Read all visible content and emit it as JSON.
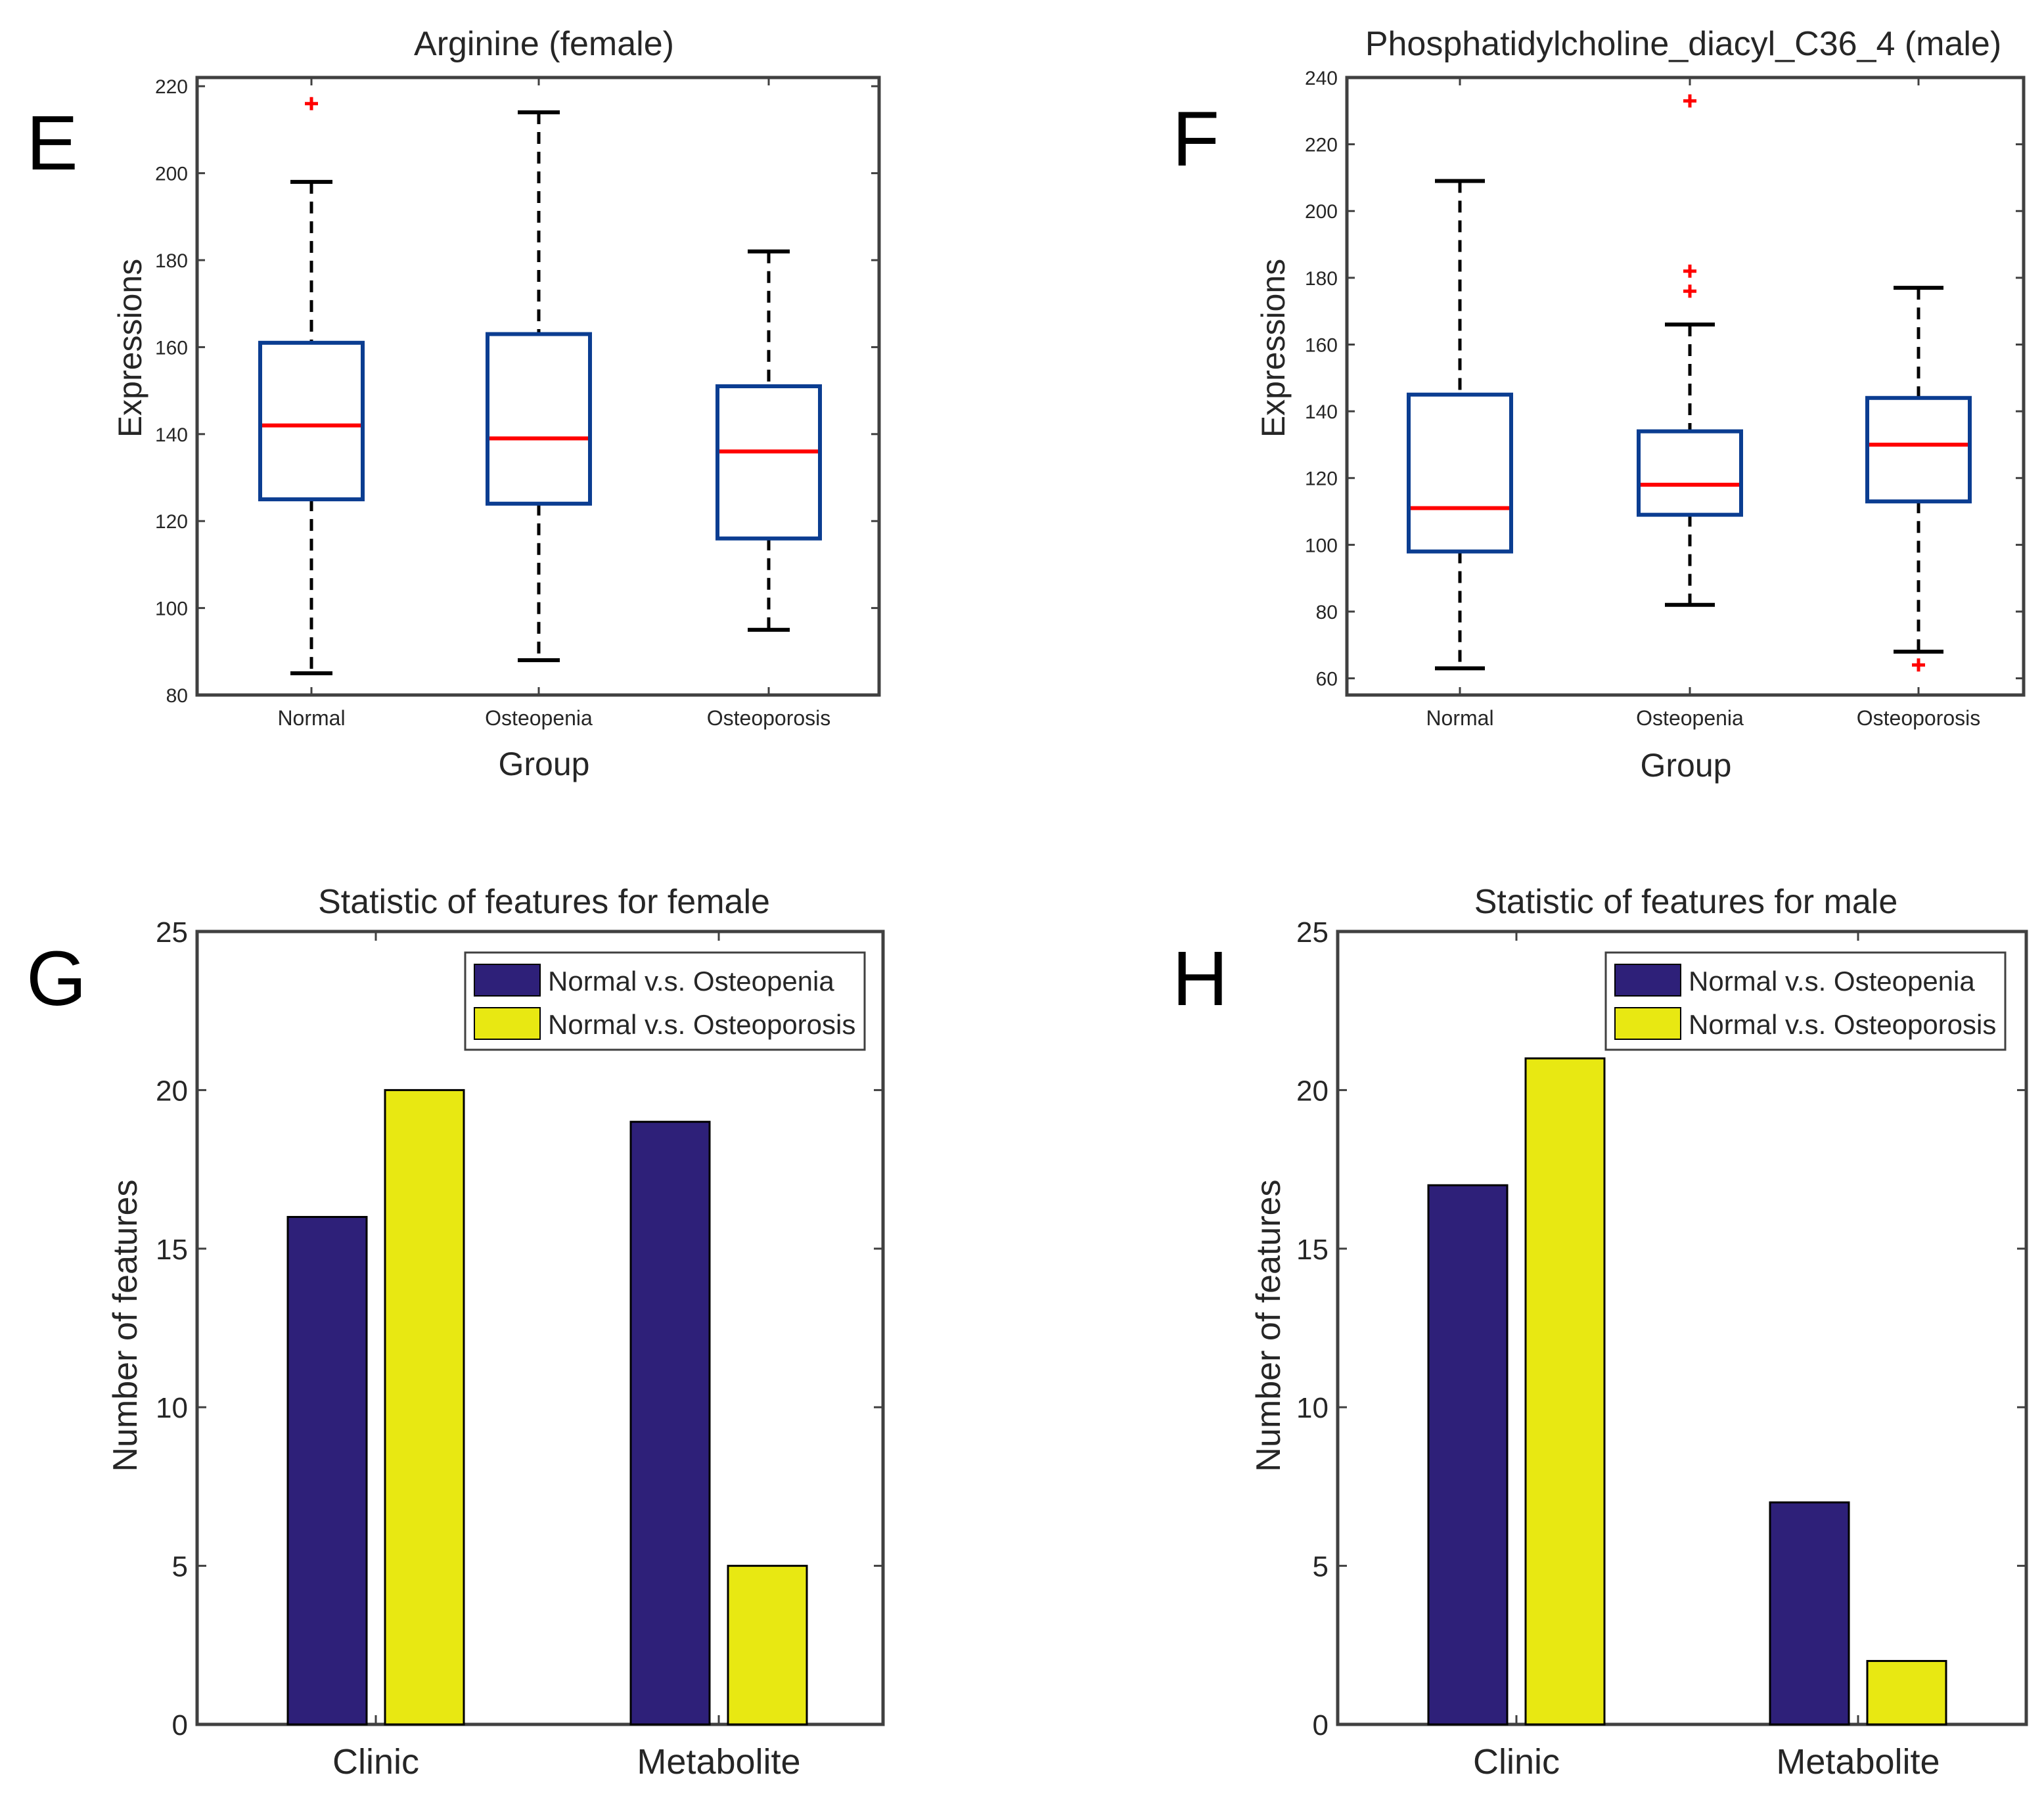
{
  "colors": {
    "box": "#0b3d91",
    "median": "#ff0000",
    "whisker": "#000000",
    "outlier": "#ff0000",
    "axis": "#404040",
    "series1": "#2e2079",
    "series2": "#e8e812"
  },
  "chart_data": [
    {
      "panel": "E",
      "type": "box",
      "title": "Arginine (female)",
      "xlabel": "Group",
      "ylabel": "Expressions",
      "ylim": [
        80,
        222
      ],
      "yticks": [
        80,
        100,
        120,
        140,
        160,
        180,
        200,
        220
      ],
      "categories": [
        "Normal",
        "Osteopenia",
        "Osteoporosis"
      ],
      "boxes": [
        {
          "lower_whisker": 85,
          "q1": 125,
          "median": 142,
          "q3": 161,
          "upper_whisker": 198,
          "outliers": [
            216
          ]
        },
        {
          "lower_whisker": 88,
          "q1": 124,
          "median": 139,
          "q3": 163,
          "upper_whisker": 214,
          "outliers": []
        },
        {
          "lower_whisker": 95,
          "q1": 116,
          "median": 136,
          "q3": 151,
          "upper_whisker": 182,
          "outliers": []
        }
      ]
    },
    {
      "panel": "F",
      "type": "box",
      "title": "Phosphatidylcholine_diacyl_C36_4 (male)",
      "xlabel": "Group",
      "ylabel": "Expressions",
      "ylim": [
        55,
        240
      ],
      "yticks": [
        60,
        80,
        100,
        120,
        140,
        160,
        180,
        200,
        220,
        240
      ],
      "categories": [
        "Normal",
        "Osteopenia",
        "Osteoporosis"
      ],
      "boxes": [
        {
          "lower_whisker": 63,
          "q1": 98,
          "median": 111,
          "q3": 145,
          "upper_whisker": 209,
          "outliers": []
        },
        {
          "lower_whisker": 82,
          "q1": 109,
          "median": 118,
          "q3": 134,
          "upper_whisker": 166,
          "outliers": [
            176,
            182,
            233
          ]
        },
        {
          "lower_whisker": 68,
          "q1": 113,
          "median": 130,
          "q3": 144,
          "upper_whisker": 177,
          "outliers": [
            64
          ]
        }
      ]
    },
    {
      "panel": "G",
      "type": "bar",
      "title": "Statistic of features for female",
      "xlabel": "",
      "ylabel": "Number of features",
      "ylim": [
        0,
        25
      ],
      "yticks": [
        0,
        5,
        10,
        15,
        20,
        25
      ],
      "categories": [
        "Clinic",
        "Metabolite"
      ],
      "legend_position": "top-right",
      "series": [
        {
          "name": "Normal v.s. Osteopenia",
          "values": [
            16,
            19
          ]
        },
        {
          "name": "Normal v.s. Osteoporosis",
          "values": [
            20,
            5
          ]
        }
      ]
    },
    {
      "panel": "H",
      "type": "bar",
      "title": "Statistic of features for male",
      "xlabel": "",
      "ylabel": "Number of features",
      "ylim": [
        0,
        25
      ],
      "yticks": [
        0,
        5,
        10,
        15,
        20,
        25
      ],
      "categories": [
        "Clinic",
        "Metabolite"
      ],
      "legend_position": "top-right",
      "series": [
        {
          "name": "Normal v.s. Osteopenia",
          "values": [
            17,
            7
          ]
        },
        {
          "name": "Normal v.s. Osteoporosis",
          "values": [
            21,
            2
          ]
        }
      ]
    }
  ]
}
